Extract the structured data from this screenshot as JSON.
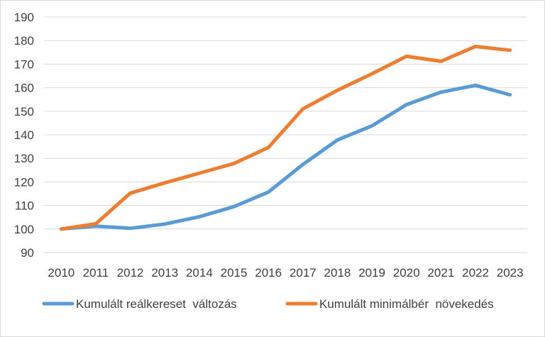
{
  "chart_data": {
    "type": "line",
    "categories": [
      "2010",
      "2011",
      "2012",
      "2013",
      "2014",
      "2015",
      "2016",
      "2017",
      "2018",
      "2019",
      "2020",
      "2021",
      "2022",
      "2023"
    ],
    "series": [
      {
        "name": "Kumulált reálkereset  változás",
        "color": "#5B9BD5",
        "values": [
          100,
          101.2,
          100.3,
          102.1,
          105.2,
          109.5,
          115.7,
          127.4,
          137.8,
          143.8,
          152.8,
          158.1,
          161,
          157
        ]
      },
      {
        "name": "Kumulált minimálbér  növekedés",
        "color": "#ED7D31",
        "values": [
          100,
          102.2,
          115.2,
          119.6,
          123.7,
          127.8,
          134.6,
          151,
          158.9,
          165.9,
          173.3,
          171.2,
          177.5,
          175.9
        ]
      }
    ],
    "y_ticks": [
      "90",
      "100",
      "110",
      "120",
      "130",
      "140",
      "150",
      "160",
      "170",
      "180",
      "190"
    ],
    "ylim": [
      90,
      190
    ],
    "grid": true,
    "gridline_color": "#D9D9D9",
    "legend_position": "bottom"
  }
}
